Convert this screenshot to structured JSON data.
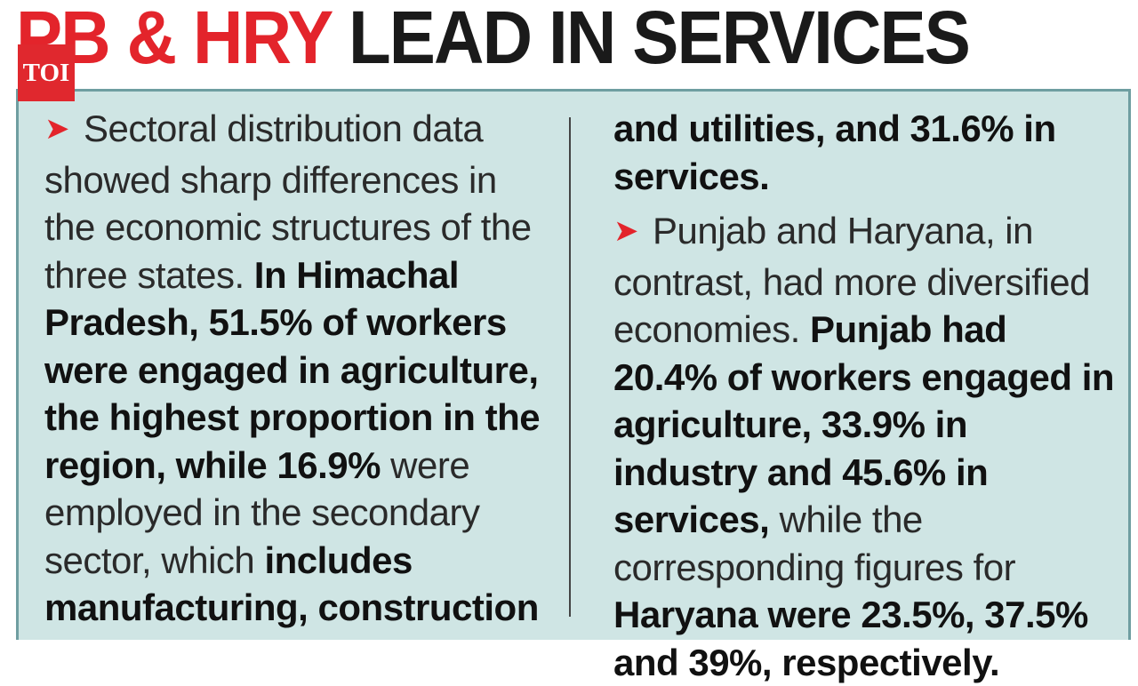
{
  "headline": {
    "red": "PB & HRY",
    "black": "LEAD IN SERVICES"
  },
  "logo": {
    "text": "TOI"
  },
  "colors": {
    "accent_red": "#e3242b",
    "panel_bg": "#cfe5e4",
    "panel_border": "#6f9ea1",
    "logo_bg": "#e0282e"
  },
  "icons": {
    "bullet": "arrowhead-icon"
  },
  "left_column": {
    "p1_intro": "Sectoral distribution data showed sharp differences in the economic structures of the three states.",
    "p1_bold": "In Himachal Pradesh, 51.5% of workers were engaged in agriculture, the highest proportion in the region, while 16.9%",
    "p1_mid": "were employed in the secondary sector, which",
    "p1_bold2": "includes manufacturing, construction"
  },
  "right_column": {
    "p1_bold": "and utilities, and 31.6% in services.",
    "p2_intro": "Punjab and Haryana, in contrast, had more diversified economies.",
    "p2_bold": "Punjab had 20.4% of workers engaged in agriculture, 33.9% in industry and 45.6% in services,",
    "p2_mid": "while the corresponding figures for",
    "p2_bold2": "Haryana were 23.5%, 37.5% and 39%, respectively."
  }
}
